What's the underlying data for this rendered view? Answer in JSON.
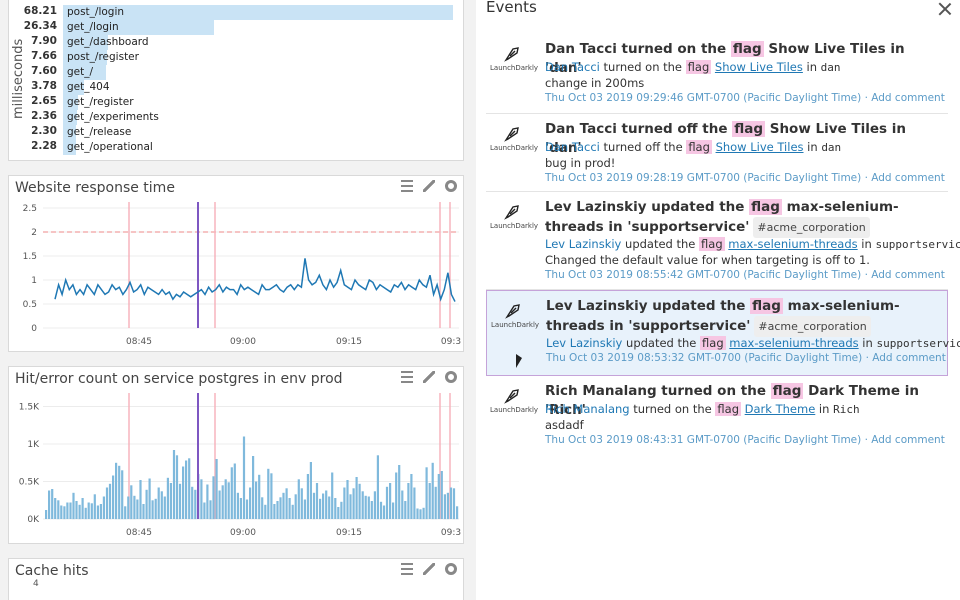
{
  "left": {
    "toplist": {
      "ylabel": "milliseconds",
      "rows": [
        {
          "value": "68.21",
          "name": "post_/login",
          "fraction": 1.0
        },
        {
          "value": "26.34",
          "name": "get_/login",
          "fraction": 0.386
        },
        {
          "value": "7.90",
          "name": "get_/dashboard",
          "fraction": 0.116
        },
        {
          "value": "7.66",
          "name": "post_/register",
          "fraction": 0.112
        },
        {
          "value": "7.60",
          "name": "get_/",
          "fraction": 0.111
        },
        {
          "value": "3.78",
          "name": "get_404",
          "fraction": 0.055
        },
        {
          "value": "2.65",
          "name": "get_/register",
          "fraction": 0.039
        },
        {
          "value": "2.36",
          "name": "get_/experiments",
          "fraction": 0.035
        },
        {
          "value": "2.30",
          "name": "get_/release",
          "fraction": 0.034
        },
        {
          "value": "2.28",
          "name": "get_/operational",
          "fraction": 0.033
        }
      ]
    },
    "response": {
      "title": "Website response time",
      "yticks": [
        "2.5",
        "2",
        "1.5",
        "1",
        "0.5",
        "0"
      ],
      "xticks": [
        "08:45",
        "09:00",
        "09:15",
        "09:3"
      ]
    },
    "hit": {
      "title": "Hit/error count on service postgres in env prod",
      "yticks": [
        "1.5K",
        "1K",
        "0.5K",
        "0K"
      ],
      "xticks": [
        "08:45",
        "09:00",
        "09:15",
        "09:3"
      ]
    },
    "cache": {
      "title": "Cache hits",
      "ytick": "4"
    },
    "tool_icons": [
      "list-icon",
      "pencil-icon",
      "gear-icon"
    ]
  },
  "chart_data": [
    {
      "type": "line",
      "title": "Website response time",
      "ylim": [
        0,
        2.5
      ],
      "threshold": 2,
      "series": [
        {
          "values": [
            0.6,
            0.9,
            0.7,
            1.0,
            0.8,
            0.9,
            0.7,
            0.8,
            0.7,
            0.9,
            0.8,
            0.7,
            0.9,
            0.8,
            0.7,
            0.75,
            0.9,
            0.8,
            0.85,
            0.7,
            0.8,
            0.95,
            0.75,
            0.8,
            0.9,
            0.7,
            0.85,
            0.8,
            0.75,
            0.7,
            0.8,
            0.7,
            0.75,
            0.6,
            0.7,
            0.65,
            0.75,
            0.7,
            0.65,
            0.7,
            0.75,
            0.8,
            0.7,
            0.85,
            0.75,
            0.8,
            0.9,
            0.75,
            0.85,
            0.8,
            0.8,
            0.7,
            0.9,
            0.8,
            0.85,
            0.8,
            0.75,
            0.7,
            0.9,
            0.8,
            0.8,
            0.85,
            0.9,
            0.8,
            0.75,
            0.85,
            0.9,
            0.8,
            0.9,
            0.85,
            1.45,
            1.0,
            0.9,
            0.95,
            1.1,
            0.9,
            0.8,
            1.0,
            0.85,
            0.95,
            1.2,
            0.9,
            0.85,
            0.8,
            1.0,
            0.9,
            0.85,
            0.8,
            1.0,
            0.95,
            0.8,
            0.9,
            0.85,
            0.8,
            0.75,
            0.9,
            0.85,
            0.95,
            0.8,
            0.9,
            0.85,
            0.8,
            1.0,
            0.9,
            0.85,
            1.1,
            0.7,
            0.9,
            0.6,
            0.8,
            1.15,
            0.7,
            0.55
          ]
        }
      ]
    },
    {
      "type": "bar",
      "title": "Hit/error count on service postgres in env prod",
      "ylim": [
        0,
        1600
      ],
      "values": [
        120,
        380,
        400,
        280,
        250,
        180,
        170,
        220,
        220,
        350,
        240,
        190,
        280,
        150,
        220,
        210,
        330,
        180,
        200,
        300,
        420,
        470,
        580,
        750,
        710,
        650,
        170,
        300,
        450,
        310,
        260,
        520,
        200,
        390,
        540,
        250,
        270,
        420,
        370,
        300,
        550,
        480,
        920,
        850,
        470,
        700,
        780,
        810,
        430,
        390,
        600,
        530,
        220,
        460,
        250,
        570,
        800,
        380,
        450,
        530,
        490,
        690,
        740,
        350,
        280,
        1100,
        260,
        420,
        840,
        500,
        590,
        290,
        190,
        670,
        610,
        200,
        240,
        290,
        350,
        410,
        280,
        190,
        330,
        530,
        410,
        260,
        600,
        760,
        350,
        480,
        270,
        340,
        380,
        300,
        620,
        280,
        160,
        230,
        420,
        520,
        330,
        410,
        560,
        470,
        370,
        310,
        300,
        240,
        370,
        850,
        230,
        180,
        430,
        480,
        220,
        620,
        720,
        380,
        240,
        480,
        600,
        420,
        140,
        130,
        150,
        690,
        480,
        750,
        430,
        600,
        640,
        330,
        350,
        420,
        410,
        170
      ]
    }
  ],
  "events": {
    "title": "Events",
    "logo_text": "LaunchDarkly",
    "items": [
      {
        "title_pre": "Dan Tacci turned on the",
        "title_flag": "flag",
        "title_post": "Show Live Tiles in 'dan'",
        "user": "Dan Tacci",
        "action": "turned on the",
        "flag_word": "flag",
        "flag_name": "Show Live Tiles",
        "in_word": "in",
        "env": "dan",
        "comment": "change in 200ms",
        "date": "Thu Oct 03 2019 09:29:46 GMT-0700 (Pacific Daylight Time)",
        "add_comment": "Add comment"
      },
      {
        "title_pre": "Dan Tacci turned off the",
        "title_flag": "flag",
        "title_post": "Show Live Tiles in 'dan'",
        "user": "Dan Tacci",
        "action": "turned off the",
        "flag_word": "flag",
        "flag_name": "Show Live Tiles",
        "in_word": "in",
        "env": "dan",
        "comment": "bug in prod!",
        "date": "Thu Oct 03 2019 09:28:19 GMT-0700 (Pacific Daylight Time)",
        "add_comment": "Add comment"
      },
      {
        "title_pre": "Lev Lazinskiy updated the",
        "title_flag": "flag",
        "title_post": "max-selenium-threads in 'supportservice'",
        "tag": "#acme_corporation",
        "user": "Lev Lazinskiy",
        "action": "updated the",
        "flag_word": "flag",
        "flag_name": "max-selenium-threads",
        "in_word": "in",
        "env": "supportservice",
        "comment": "Changed the default value for when targeting is off to 1.",
        "date": "Thu Oct 03 2019 08:55:42 GMT-0700 (Pacific Daylight Time)",
        "add_comment": "Add comment"
      },
      {
        "title_pre": "Lev Lazinskiy updated the",
        "title_flag": "flag",
        "title_post": "max-selenium-threads in 'supportservice'",
        "tag": "#acme_corporation",
        "user": "Lev Lazinskiy",
        "action": "updated the",
        "flag_word": "flag",
        "flag_name": "max-selenium-threads",
        "in_word": "in",
        "env": "supportservice",
        "date": "Thu Oct 03 2019 08:53:32 GMT-0700 (Pacific Daylight Time)",
        "add_comment": "Add comment"
      },
      {
        "title_pre": "Rich Manalang turned on the",
        "title_flag": "flag",
        "title_post": "Dark Theme in 'Rich'",
        "user": "Rich Manalang",
        "action": "turned on the",
        "flag_word": "flag",
        "flag_name": "Dark Theme",
        "in_word": "in",
        "env": "Rich",
        "comment": "asdadf",
        "date": "Thu Oct 03 2019 08:43:31 GMT-0700 (Pacific Daylight Time)",
        "add_comment": "Add comment"
      }
    ]
  },
  "colors": {
    "line": "#1f78b4",
    "bar": "#7fb9dc",
    "marker": "#7e57c2",
    "event_line": "#f7b4bd",
    "highlight": "#f6c6e3"
  }
}
